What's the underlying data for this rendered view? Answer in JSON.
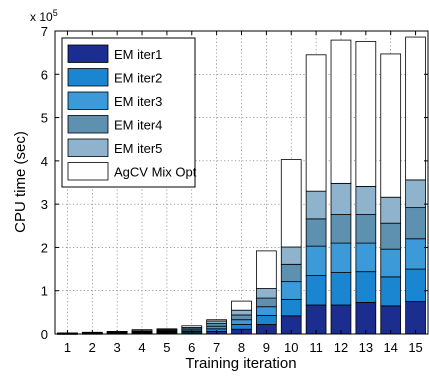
{
  "chart_data": {
    "type": "bar",
    "stacked": true,
    "xlabel": "Training iteration",
    "ylabel": "CPU time (sec)",
    "y_multiplier_label": "x 10",
    "y_multiplier_exponent": "5",
    "y_scale": 100000,
    "ylim": [
      0,
      7
    ],
    "yticks": [
      0,
      1,
      2,
      3,
      4,
      5,
      6,
      7
    ],
    "grid": "dotted",
    "legend_position": "top-left",
    "categories": [
      "1",
      "2",
      "3",
      "4",
      "5",
      "6",
      "7",
      "8",
      "9",
      "10",
      "11",
      "12",
      "13",
      "14",
      "15"
    ],
    "series": [
      {
        "name": "EM iter1",
        "color": "#1b2d8f",
        "values": [
          0.005,
          0.008,
          0.01,
          0.015,
          0.02,
          0.03,
          0.06,
          0.11,
          0.22,
          0.42,
          0.67,
          0.67,
          0.73,
          0.65,
          0.75
        ]
      },
      {
        "name": "EM iter2",
        "color": "#1a85d0",
        "values": [
          0.005,
          0.008,
          0.01,
          0.015,
          0.02,
          0.03,
          0.06,
          0.11,
          0.21,
          0.38,
          0.68,
          0.75,
          0.71,
          0.67,
          0.75
        ]
      },
      {
        "name": "EM iter3",
        "color": "#3c9ad8",
        "values": [
          0.005,
          0.008,
          0.01,
          0.015,
          0.02,
          0.03,
          0.06,
          0.11,
          0.2,
          0.41,
          0.68,
          0.68,
          0.66,
          0.64,
          0.7
        ]
      },
      {
        "name": "EM iter4",
        "color": "#5e90b0",
        "values": [
          0.005,
          0.008,
          0.01,
          0.015,
          0.02,
          0.03,
          0.06,
          0.11,
          0.2,
          0.4,
          0.63,
          0.66,
          0.66,
          0.6,
          0.72
        ]
      },
      {
        "name": "EM iter5",
        "color": "#8fb3cc",
        "values": [
          0.005,
          0.008,
          0.01,
          0.015,
          0.02,
          0.03,
          0.06,
          0.11,
          0.22,
          0.4,
          0.64,
          0.72,
          0.65,
          0.6,
          0.64
        ]
      },
      {
        "name": "AgCV Mix Opt",
        "color": "#ffffff",
        "values": [
          0.0,
          0.0,
          0.01,
          0.025,
          0.02,
          0.04,
          0.03,
          0.21,
          0.87,
          2.02,
          3.15,
          3.31,
          3.35,
          3.31,
          3.3
        ]
      }
    ]
  }
}
